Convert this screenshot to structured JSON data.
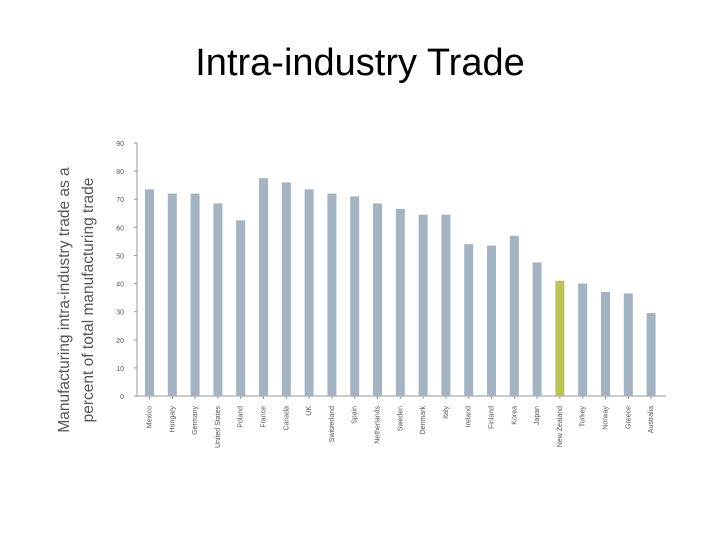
{
  "slide": {
    "title": "Intra-industry Trade"
  },
  "chart_data": {
    "type": "bar",
    "title": "",
    "ylabel_lines": [
      "Manufacturing intra-industry trade as a",
      "percent of total manufacturing trade"
    ],
    "xlabel": "",
    "ylim": [
      0,
      90
    ],
    "yticks": [
      0,
      10,
      20,
      30,
      40,
      50,
      60,
      70,
      80,
      90
    ],
    "grid": false,
    "categories": [
      "Mexico",
      "Hungary",
      "Germany",
      "United States",
      "Poland",
      "France",
      "Canada",
      "UK",
      "Switzerland",
      "Spain",
      "Netherlands",
      "Sweden",
      "Denmark",
      "Italy",
      "Ireland",
      "Finland",
      "Korea",
      "Japan",
      "New Zealand",
      "Turkey",
      "Norway",
      "Greece",
      "Australia"
    ],
    "values": [
      73.5,
      72,
      72,
      68.5,
      62.5,
      77.5,
      76,
      73.5,
      72,
      71,
      68.5,
      66.5,
      64.5,
      64.5,
      54,
      53.5,
      57,
      47.5,
      41,
      40,
      37,
      36.5,
      29.5
    ],
    "bar_color": "#a3b3c2",
    "highlight_category": "New Zealand",
    "highlight_color": "#bcc25a"
  }
}
